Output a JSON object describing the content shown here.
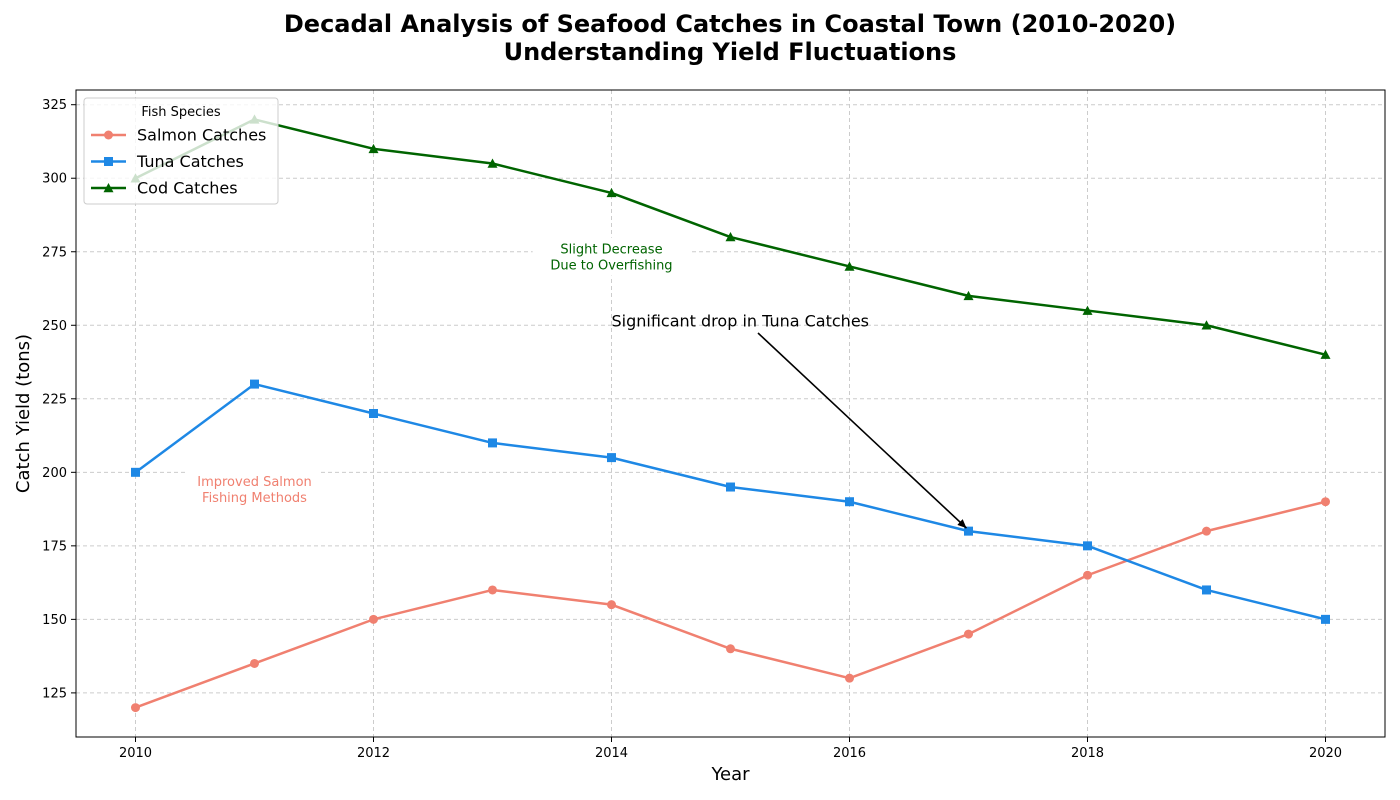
{
  "chart_data": {
    "type": "line",
    "title": "Decadal Analysis of Seafood Catches in Coastal Town (2010-2020)",
    "subtitle": "Understanding Yield Fluctuations",
    "xlabel": "Year",
    "ylabel": "Catch Yield (tons)",
    "x": [
      2010,
      2011,
      2012,
      2013,
      2014,
      2015,
      2016,
      2017,
      2018,
      2019,
      2020
    ],
    "xlim": [
      2009.5,
      2020.5
    ],
    "ylim": [
      110,
      330
    ],
    "x_ticks": [
      "2010",
      "2012",
      "2014",
      "2016",
      "2018",
      "2020"
    ],
    "y_ticks": [
      "125",
      "150",
      "175",
      "200",
      "225",
      "250",
      "275",
      "300",
      "325"
    ],
    "grid": true,
    "legend": {
      "title": "Fish Species",
      "placement": "top-left"
    },
    "series": [
      {
        "name": "Salmon Catches",
        "color": "#F08070",
        "marker": "circle",
        "values": [
          120,
          135,
          150,
          160,
          155,
          140,
          130,
          145,
          165,
          180,
          190
        ]
      },
      {
        "name": "Tuna Catches",
        "color": "#1E88E5",
        "marker": "square",
        "values": [
          200,
          230,
          220,
          210,
          205,
          195,
          190,
          180,
          175,
          160,
          150
        ]
      },
      {
        "name": "Cod Catches",
        "color": "#006400",
        "marker": "triangle",
        "values": [
          300,
          320,
          310,
          305,
          295,
          280,
          270,
          260,
          255,
          250,
          240
        ]
      }
    ],
    "annotations": [
      {
        "text": "Significant drop in Tuna Catches",
        "x": 2014,
        "y": 250,
        "arrow_to": {
          "x": 2017,
          "y": 180
        },
        "color": "#000000"
      },
      {
        "text_lines": [
          "Slight Decrease",
          "Due to Overfishing"
        ],
        "x": 2014,
        "y": 273,
        "color": "#006400"
      },
      {
        "text_lines": [
          "Improved Salmon",
          "Fishing Methods"
        ],
        "x": 2011,
        "y": 194,
        "color": "#F08070"
      }
    ]
  }
}
